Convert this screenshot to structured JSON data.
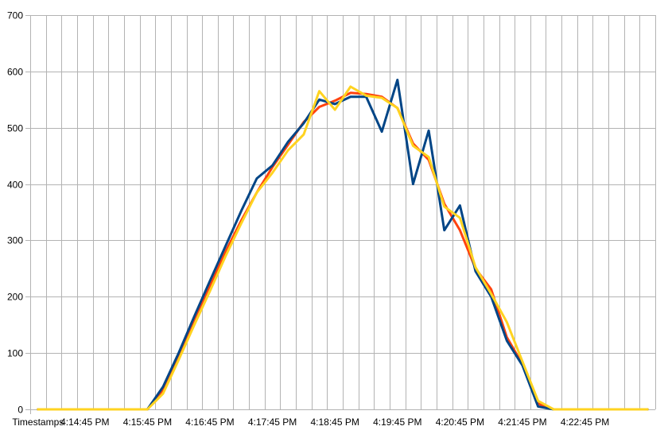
{
  "chart_data": {
    "type": "line",
    "title": "",
    "xlabel": "",
    "ylabel": "",
    "ylim": [
      0,
      700
    ],
    "yticks": [
      0,
      100,
      200,
      300,
      400,
      500,
      600,
      700
    ],
    "grid": true,
    "legend": "none",
    "x_count": 40,
    "x_label_ticks": [
      {
        "index": 0,
        "label": "Timestamps"
      },
      {
        "index": 3,
        "label": "4:14:45 PM"
      },
      {
        "index": 7,
        "label": "4:15:45 PM"
      },
      {
        "index": 11,
        "label": "4:16:45 PM"
      },
      {
        "index": 15,
        "label": "4:17:45 PM"
      },
      {
        "index": 19,
        "label": "4:18:45 PM"
      },
      {
        "index": 23,
        "label": "4:19:45 PM"
      },
      {
        "index": 27,
        "label": "4:20:45 PM"
      },
      {
        "index": 31,
        "label": "4:21:45 PM"
      },
      {
        "index": 35,
        "label": "4:22:45 PM"
      }
    ],
    "series": [
      {
        "color": "#ff420e",
        "values": [
          0,
          0,
          0,
          0,
          0,
          0,
          0,
          0,
          35,
          95,
          160,
          220,
          280,
          335,
          385,
          430,
          470,
          510,
          537,
          548,
          562,
          560,
          555,
          535,
          472,
          443,
          365,
          318,
          250,
          213,
          128,
          80,
          10,
          0,
          0,
          0,
          0,
          0,
          0,
          0
        ]
      },
      {
        "color": "#004586",
        "values": [
          0,
          0,
          0,
          0,
          0,
          0,
          0,
          0,
          40,
          100,
          165,
          228,
          290,
          352,
          410,
          433,
          475,
          508,
          550,
          542,
          555,
          555,
          493,
          585,
          400,
          495,
          318,
          362,
          245,
          200,
          122,
          78,
          5,
          0,
          0,
          0,
          0,
          0,
          0,
          0
        ]
      },
      {
        "color": "#ffd320",
        "values": [
          0,
          0,
          0,
          0,
          0,
          0,
          0,
          0,
          28,
          88,
          150,
          210,
          272,
          330,
          385,
          420,
          460,
          488,
          565,
          532,
          573,
          557,
          553,
          535,
          468,
          448,
          360,
          340,
          252,
          205,
          155,
          85,
          15,
          0,
          0,
          0,
          0,
          0,
          0,
          0
        ]
      }
    ]
  }
}
